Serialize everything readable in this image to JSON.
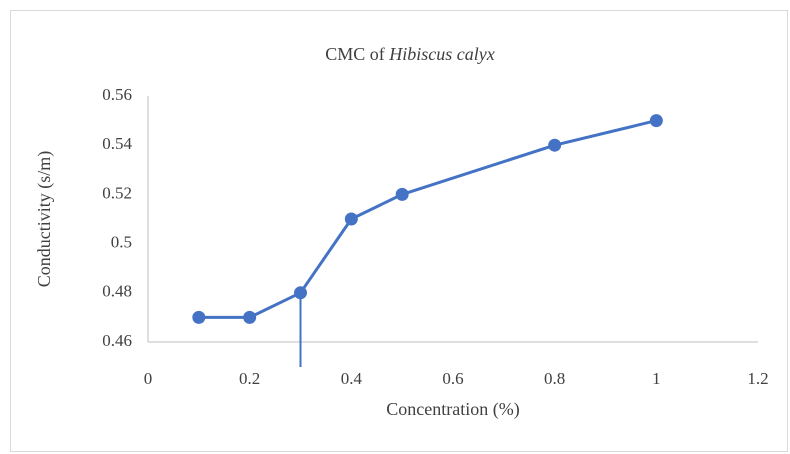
{
  "chart_data": {
    "type": "line",
    "title": [
      "CMC of",
      "Hibiscus calyx"
    ],
    "x_label": "Concentration (%)",
    "y_label": "Conductivity (s/m)",
    "x": [
      0.1,
      0.2,
      0.3,
      0.4,
      0.5,
      0.8,
      1
    ],
    "series": [
      {
        "name": "Conductivity",
        "color": "#4472c4",
        "values": [
          0.47,
          0.47,
          0.48,
          0.51,
          0.52,
          0.54,
          0.55
        ]
      }
    ],
    "xlim": [
      0,
      1.2
    ],
    "xticks": [
      0,
      0.2,
      0.4,
      0.6,
      0.8,
      1,
      1.2
    ],
    "ylim": [
      0.46,
      0.56
    ],
    "yticks": [
      0.46,
      0.48,
      0.5,
      0.52,
      0.54,
      0.56
    ],
    "cmc_line": {
      "x": 0.3,
      "y": 0.48
    },
    "grid": false,
    "markers": true
  }
}
